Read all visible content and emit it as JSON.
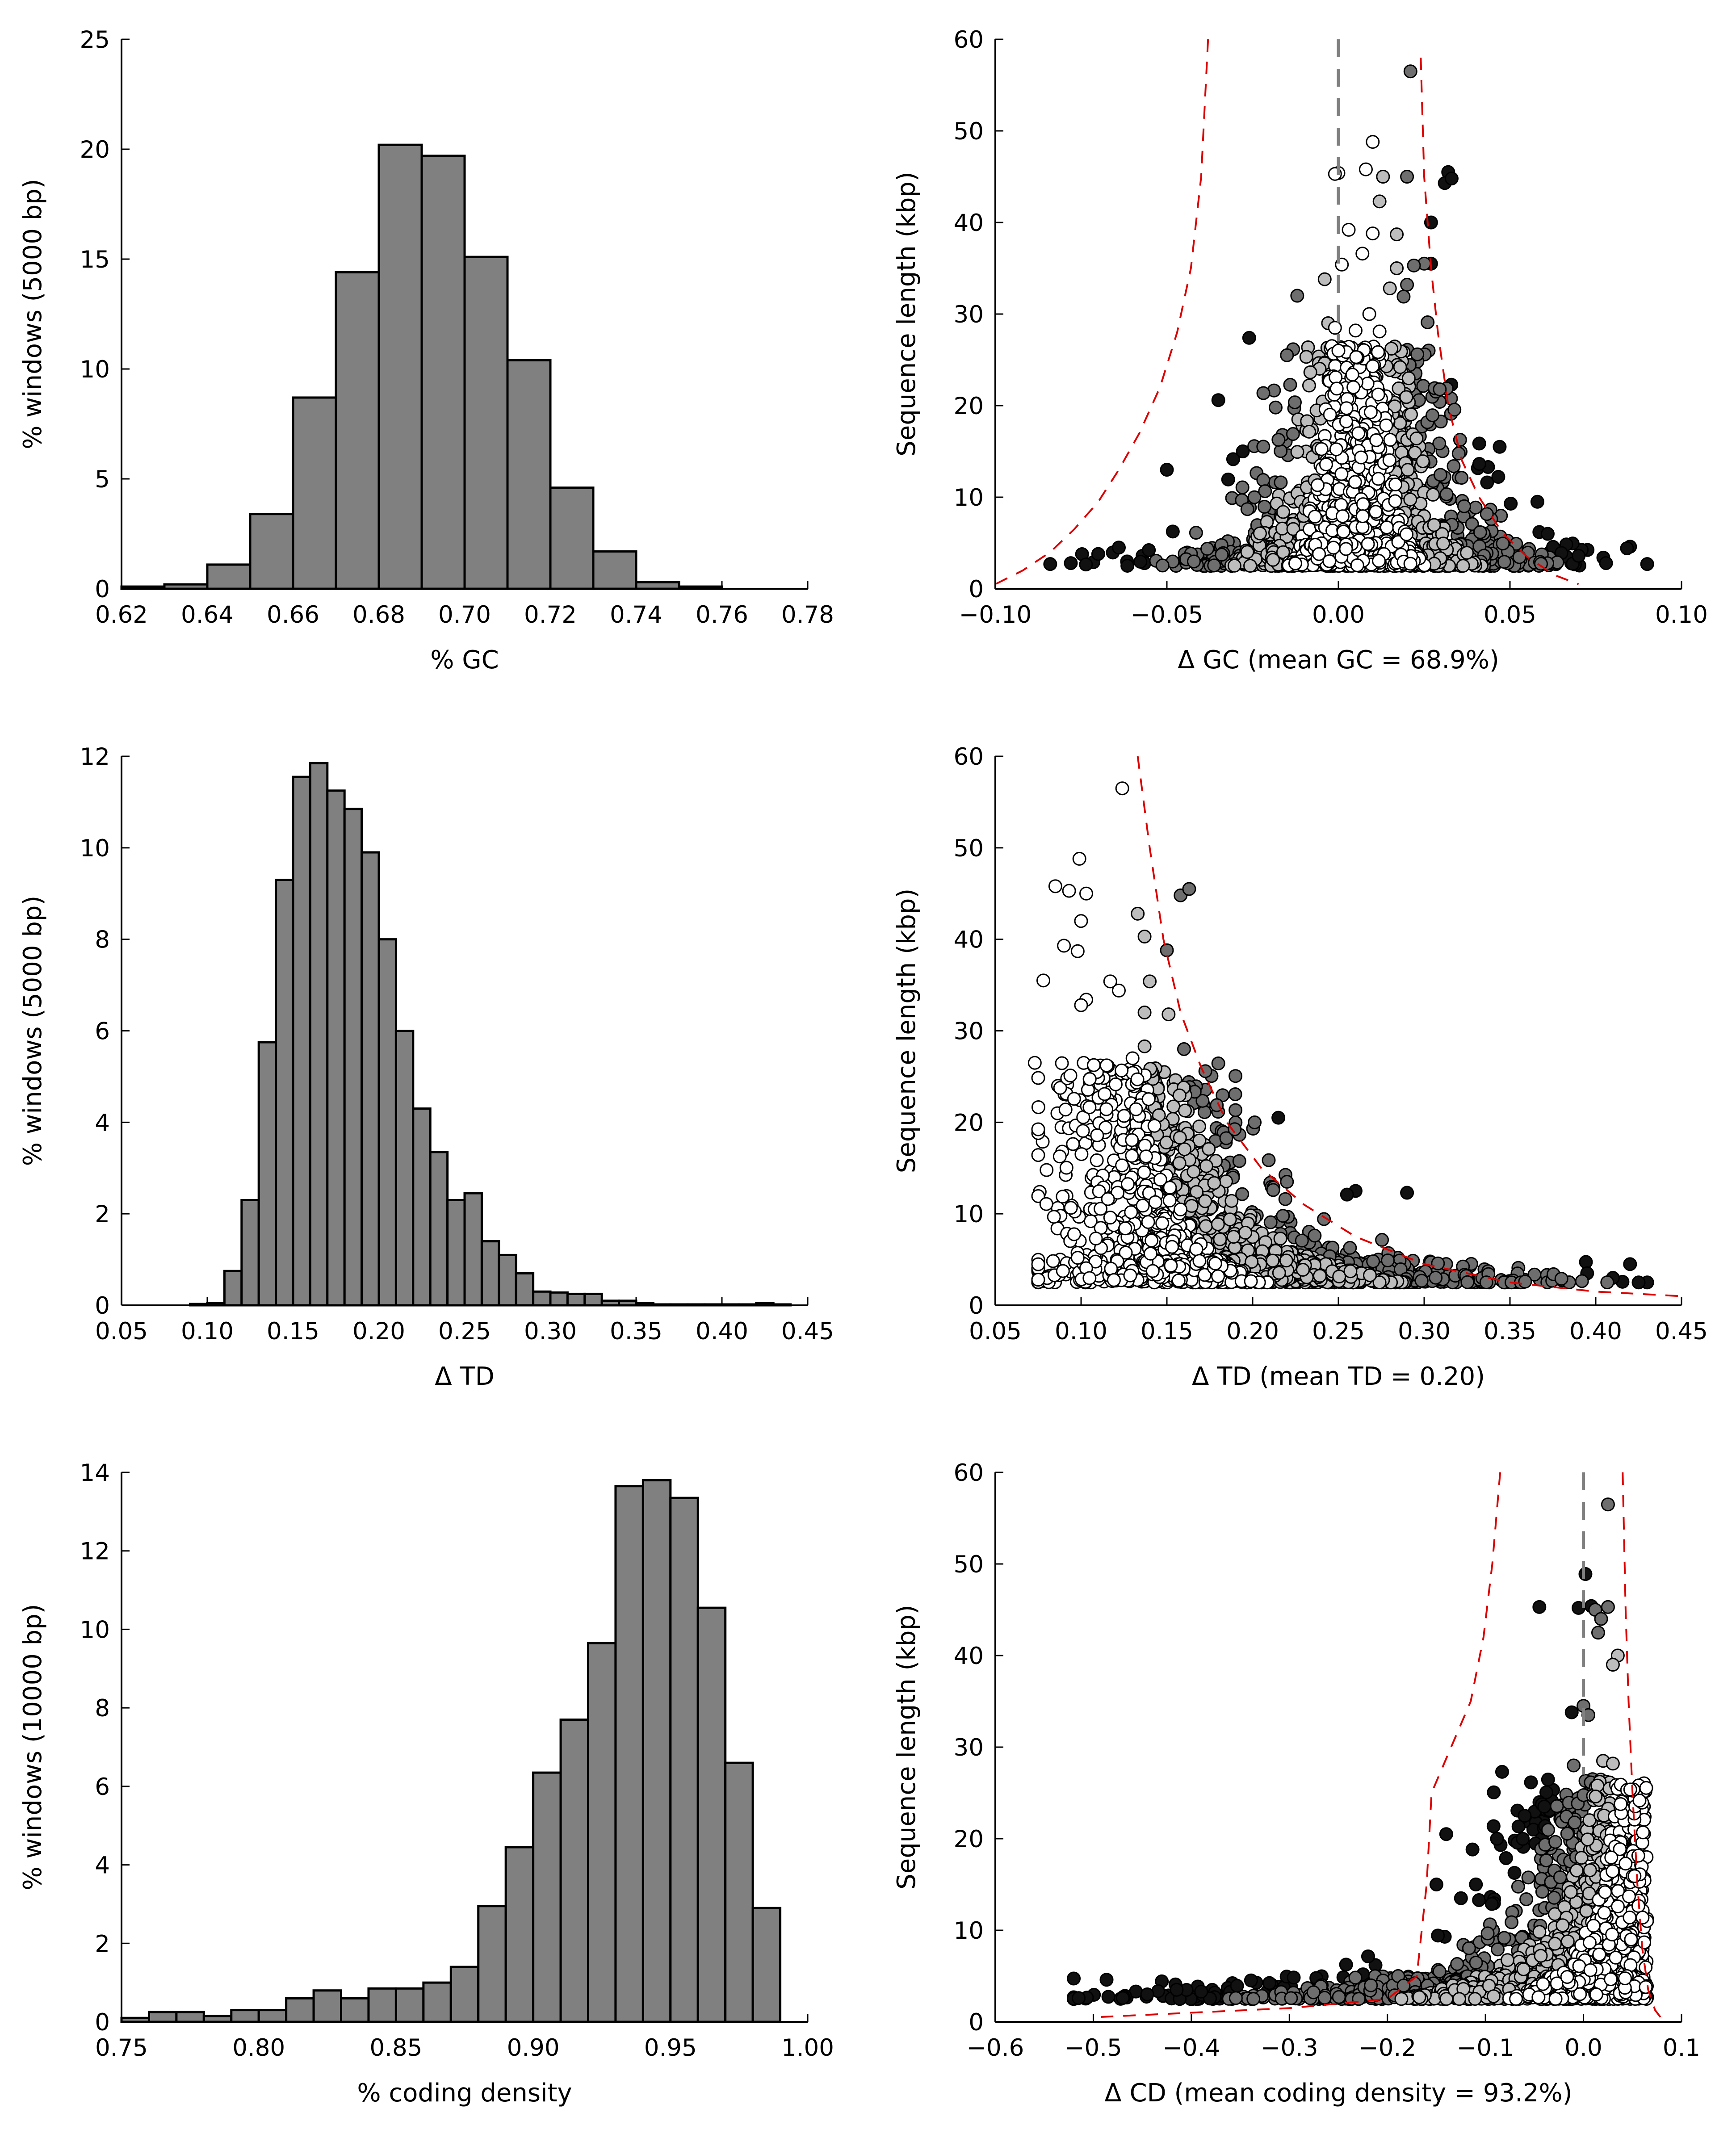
{
  "chart_data": [
    {
      "id": "gc-hist",
      "type": "bar",
      "xlabel": "% GC",
      "ylabel": "% windows (5000 bp)",
      "xlim": [
        0.62,
        0.78
      ],
      "ylim": [
        0,
        25
      ],
      "xticks": [
        0.62,
        0.64,
        0.66,
        0.68,
        0.7,
        0.72,
        0.74,
        0.76,
        0.78
      ],
      "xtick_labels": [
        "0.62",
        "0.64",
        "0.66",
        "0.68",
        "0.70",
        "0.72",
        "0.74",
        "0.76",
        "0.78"
      ],
      "yticks": [
        0,
        5,
        10,
        15,
        20,
        25
      ],
      "ytick_labels": [
        "0",
        "5",
        "10",
        "15",
        "20",
        "25"
      ],
      "bin_edges": [
        0.62,
        0.63,
        0.64,
        0.65,
        0.66,
        0.67,
        0.68,
        0.69,
        0.7,
        0.71,
        0.72,
        0.73,
        0.74,
        0.75,
        0.76
      ],
      "values": [
        0.1,
        0.2,
        1.1,
        3.4,
        8.7,
        14.4,
        20.2,
        19.7,
        15.1,
        10.4,
        4.6,
        1.7,
        0.3,
        0.1
      ],
      "bar_color": "#808080"
    },
    {
      "id": "gc-scatter",
      "type": "scatter",
      "xlabel": "Δ GC (mean GC = 68.9%)",
      "ylabel": "Sequence length (kbp)",
      "xlim": [
        -0.1,
        0.1
      ],
      "ylim": [
        0,
        60
      ],
      "xticks": [
        -0.1,
        -0.05,
        0.0,
        0.05,
        0.1
      ],
      "xtick_labels": [
        "−0.10",
        "−0.05",
        "0.00",
        "0.05",
        "0.10"
      ],
      "yticks": [
        0,
        10,
        20,
        30,
        40,
        50,
        60
      ],
      "ytick_labels": [
        "0",
        "10",
        "20",
        "30",
        "40",
        "50",
        "60"
      ],
      "reference_line_x": 0.0,
      "bound_left": [
        [
          -0.038,
          60
        ],
        [
          -0.04,
          45
        ],
        [
          -0.043,
          35
        ],
        [
          -0.047,
          28
        ],
        [
          -0.052,
          22
        ],
        [
          -0.058,
          17
        ],
        [
          -0.064,
          13
        ],
        [
          -0.07,
          9.5
        ],
        [
          -0.077,
          6.5
        ],
        [
          -0.084,
          4
        ],
        [
          -0.092,
          2
        ],
        [
          -0.1,
          0.5
        ]
      ],
      "bound_right": [
        [
          0.024,
          58
        ],
        [
          0.025,
          45
        ],
        [
          0.027,
          35
        ],
        [
          0.029,
          28
        ],
        [
          0.032,
          20
        ],
        [
          0.036,
          14
        ],
        [
          0.041,
          10
        ],
        [
          0.048,
          6
        ],
        [
          0.055,
          3.5
        ],
        [
          0.063,
          1.5
        ],
        [
          0.07,
          0.5
        ]
      ],
      "colors": {
        "inner": "#ffffff",
        "mid": "#bdbdbd",
        "outer": "#6e6e6e",
        "extreme": "#111111",
        "bound": "#dd0000",
        "reference": "#808080"
      },
      "highlight_points": [
        [
          0.021,
          56.5
        ],
        [
          0.01,
          48.8
        ],
        [
          0.0,
          45.4
        ],
        [
          -0.001,
          45.3
        ],
        [
          0.008,
          45.8
        ],
        [
          0.013,
          45.0
        ],
        [
          0.02,
          45.0
        ],
        [
          0.032,
          45.5
        ],
        [
          0.031,
          44.3
        ],
        [
          0.033,
          44.8
        ],
        [
          0.012,
          42.3
        ],
        [
          0.003,
          39.2
        ],
        [
          0.027,
          40.0
        ],
        [
          0.01,
          38.8
        ],
        [
          0.017,
          38.7
        ],
        [
          0.025,
          35.5
        ],
        [
          0.027,
          35.5
        ],
        [
          0.022,
          35.3
        ],
        [
          0.001,
          35.4
        ],
        [
          0.007,
          36.6
        ],
        [
          0.017,
          35.0
        ],
        [
          0.02,
          33.2
        ],
        [
          -0.004,
          33.8
        ],
        [
          0.015,
          32.8
        ],
        [
          -0.012,
          32.0
        ],
        [
          0.019,
          31.9
        ],
        [
          0.026,
          29.1
        ],
        [
          0.009,
          30.0
        ],
        [
          -0.003,
          29.0
        ],
        [
          -0.001,
          28.5
        ],
        [
          0.005,
          28.2
        ],
        [
          0.012,
          28.1
        ],
        [
          -0.026,
          27.4
        ],
        [
          0.0,
          26.0
        ],
        [
          -0.015,
          25.5
        ],
        [
          0.023,
          25.6
        ],
        [
          0.014,
          24.3
        ],
        [
          0.01,
          24.3
        ],
        [
          -0.035,
          20.6
        ],
        [
          0.047,
          15.5
        ],
        [
          -0.05,
          13.0
        ],
        [
          0.058,
          9.5
        ],
        [
          0.061,
          6.0
        ],
        [
          -0.064,
          4.5
        ],
        [
          -0.07,
          3.8
        ],
        [
          0.065,
          3.9
        ],
        [
          0.07,
          3.6
        ],
        [
          -0.078,
          2.8
        ],
        [
          -0.084,
          2.7
        ],
        [
          0.09,
          2.7
        ],
        [
          0.078,
          2.8
        ]
      ]
    },
    {
      "id": "td-hist",
      "type": "bar",
      "xlabel": "Δ TD",
      "ylabel": "% windows (5000 bp)",
      "xlim": [
        0.05,
        0.45
      ],
      "ylim": [
        0,
        12
      ],
      "xticks": [
        0.05,
        0.1,
        0.15,
        0.2,
        0.25,
        0.3,
        0.35,
        0.4,
        0.45
      ],
      "xtick_labels": [
        "0.05",
        "0.10",
        "0.15",
        "0.20",
        "0.25",
        "0.30",
        "0.35",
        "0.40",
        "0.45"
      ],
      "yticks": [
        0,
        2,
        4,
        6,
        8,
        10,
        12
      ],
      "ytick_labels": [
        "0",
        "2",
        "4",
        "6",
        "8",
        "10",
        "12"
      ],
      "bin_edges": [
        0.09,
        0.1,
        0.11,
        0.12,
        0.13,
        0.14,
        0.15,
        0.16,
        0.17,
        0.18,
        0.19,
        0.2,
        0.21,
        0.22,
        0.23,
        0.24,
        0.25,
        0.26,
        0.27,
        0.28,
        0.29,
        0.3,
        0.31,
        0.32,
        0.33,
        0.34,
        0.35,
        0.36,
        0.37,
        0.38,
        0.39,
        0.4,
        0.41,
        0.42,
        0.43,
        0.44
      ],
      "values": [
        0.03,
        0.05,
        0.75,
        2.3,
        5.75,
        9.3,
        11.55,
        11.85,
        11.25,
        10.85,
        9.9,
        8.0,
        6.0,
        4.3,
        3.35,
        2.3,
        2.45,
        1.4,
        1.1,
        0.7,
        0.3,
        0.28,
        0.25,
        0.25,
        0.1,
        0.1,
        0.05,
        0.02,
        0.02,
        0.02,
        0.02,
        0.02,
        0.02,
        0.05,
        0.02
      ],
      "bar_color": "#808080"
    },
    {
      "id": "td-scatter",
      "type": "scatter",
      "xlabel": "Δ TD (mean TD = 0.20)",
      "ylabel": "Sequence length (kbp)",
      "xlim": [
        0.05,
        0.45
      ],
      "ylim": [
        0,
        60
      ],
      "xticks": [
        0.05,
        0.1,
        0.15,
        0.2,
        0.25,
        0.3,
        0.35,
        0.4,
        0.45
      ],
      "xtick_labels": [
        "0.05",
        "0.10",
        "0.15",
        "0.20",
        "0.25",
        "0.30",
        "0.35",
        "0.40",
        "0.45"
      ],
      "yticks": [
        0,
        10,
        20,
        30,
        40,
        50,
        60
      ],
      "ytick_labels": [
        "0",
        "10",
        "20",
        "30",
        "40",
        "50",
        "60"
      ],
      "bound_right": [
        [
          0.133,
          60
        ],
        [
          0.14,
          50
        ],
        [
          0.148,
          40
        ],
        [
          0.158,
          32
        ],
        [
          0.17,
          26
        ],
        [
          0.185,
          20
        ],
        [
          0.205,
          15
        ],
        [
          0.23,
          11
        ],
        [
          0.26,
          7.5
        ],
        [
          0.3,
          4.5
        ],
        [
          0.35,
          2.5
        ],
        [
          0.4,
          1.5
        ],
        [
          0.45,
          1.0
        ]
      ],
      "colors": {
        "inner": "#ffffff",
        "mid": "#bdbdbd",
        "outer": "#6e6e6e",
        "extreme": "#111111",
        "bound": "#dd0000"
      },
      "highlight_points": [
        [
          0.124,
          56.5
        ],
        [
          0.099,
          48.8
        ],
        [
          0.085,
          45.8
        ],
        [
          0.093,
          45.3
        ],
        [
          0.103,
          45.0
        ],
        [
          0.158,
          44.8
        ],
        [
          0.163,
          45.5
        ],
        [
          0.1,
          42.0
        ],
        [
          0.133,
          42.8
        ],
        [
          0.137,
          40.3
        ],
        [
          0.09,
          39.3
        ],
        [
          0.15,
          38.8
        ],
        [
          0.098,
          38.7
        ],
        [
          0.117,
          35.4
        ],
        [
          0.078,
          35.5
        ],
        [
          0.122,
          34.4
        ],
        [
          0.14,
          35.4
        ],
        [
          0.103,
          33.4
        ],
        [
          0.1,
          32.8
        ],
        [
          0.137,
          32.0
        ],
        [
          0.151,
          31.8
        ],
        [
          0.137,
          28.3
        ],
        [
          0.16,
          28.0
        ],
        [
          0.13,
          27.0
        ],
        [
          0.073,
          26.5
        ],
        [
          0.215,
          20.5
        ],
        [
          0.29,
          12.3
        ],
        [
          0.26,
          12.5
        ],
        [
          0.255,
          12.1
        ],
        [
          0.212,
          12.6
        ],
        [
          0.22,
          13.5
        ],
        [
          0.42,
          4.5
        ],
        [
          0.41,
          3.0
        ],
        [
          0.425,
          2.5
        ],
        [
          0.395,
          3.5
        ],
        [
          0.38,
          2.9
        ]
      ]
    },
    {
      "id": "cd-hist",
      "type": "bar",
      "xlabel": "% coding density",
      "ylabel": "% windows (10000 bp)",
      "xlim": [
        0.75,
        1.0
      ],
      "ylim": [
        0,
        14
      ],
      "xticks": [
        0.75,
        0.8,
        0.85,
        0.9,
        0.95,
        1.0
      ],
      "xtick_labels": [
        "0.75",
        "0.80",
        "0.85",
        "0.90",
        "0.95",
        "1.00"
      ],
      "yticks": [
        0,
        2,
        4,
        6,
        8,
        10,
        12,
        14
      ],
      "ytick_labels": [
        "0",
        "2",
        "4",
        "6",
        "8",
        "10",
        "12",
        "14"
      ],
      "bin_edges": [
        0.75,
        0.76,
        0.77,
        0.78,
        0.79,
        0.8,
        0.81,
        0.82,
        0.83,
        0.84,
        0.85,
        0.86,
        0.87,
        0.88,
        0.89,
        0.9,
        0.91,
        0.92,
        0.93,
        0.94,
        0.95,
        0.96,
        0.97,
        0.98,
        0.99
      ],
      "values": [
        0.1,
        0.25,
        0.25,
        0.15,
        0.3,
        0.3,
        0.6,
        0.8,
        0.6,
        0.85,
        0.85,
        1.0,
        1.4,
        2.95,
        4.45,
        6.35,
        7.7,
        9.65,
        13.65,
        13.8,
        13.35,
        10.55,
        6.6,
        2.9
      ],
      "bar_color": "#808080"
    },
    {
      "id": "cd-scatter",
      "type": "scatter",
      "xlabel": "Δ CD (mean coding density = 93.2%)",
      "ylabel": "Sequence length (kbp)",
      "xlim": [
        -0.6,
        0.1
      ],
      "ylim": [
        0,
        60
      ],
      "xticks": [
        -0.6,
        -0.5,
        -0.4,
        -0.3,
        -0.2,
        -0.1,
        0.0,
        0.1
      ],
      "xtick_labels": [
        "−0.6",
        "−0.5",
        "−0.4",
        "−0.3",
        "−0.2",
        "−0.1",
        "0.0",
        "0.1"
      ],
      "yticks": [
        0,
        10,
        20,
        30,
        40,
        50,
        60
      ],
      "ytick_labels": [
        "0",
        "10",
        "20",
        "30",
        "40",
        "50",
        "60"
      ],
      "reference_line_x": 0.0,
      "bound_left": [
        [
          -0.085,
          60
        ],
        [
          -0.093,
          50
        ],
        [
          -0.102,
          42
        ],
        [
          -0.115,
          35
        ],
        [
          -0.135,
          30
        ],
        [
          -0.155,
          25
        ],
        [
          -0.16,
          15
        ],
        [
          -0.17,
          5
        ],
        [
          -0.2,
          2.5
        ],
        [
          -0.3,
          1.5
        ],
        [
          -0.5,
          0.5
        ]
      ],
      "bound_right": [
        [
          0.04,
          60
        ],
        [
          0.043,
          45
        ],
        [
          0.046,
          35
        ],
        [
          0.05,
          25
        ],
        [
          0.055,
          15
        ],
        [
          0.06,
          8
        ],
        [
          0.066,
          3.5
        ],
        [
          0.073,
          1.3
        ],
        [
          0.08,
          0.3
        ]
      ],
      "colors": {
        "inner": "#ffffff",
        "mid": "#bdbdbd",
        "outer": "#6e6e6e",
        "extreme": "#111111",
        "bound": "#dd0000",
        "reference": "#808080"
      },
      "highlight_points": [
        [
          0.025,
          56.5
        ],
        [
          0.002,
          48.9
        ],
        [
          -0.045,
          45.3
        ],
        [
          -0.005,
          45.2
        ],
        [
          0.008,
          45.4
        ],
        [
          0.025,
          45.3
        ],
        [
          0.012,
          45.0
        ],
        [
          0.018,
          44.0
        ],
        [
          0.015,
          42.5
        ],
        [
          0.035,
          40.0
        ],
        [
          0.03,
          39.0
        ],
        [
          -0.012,
          33.8
        ],
        [
          0.0,
          34.5
        ],
        [
          0.005,
          33.5
        ],
        [
          -0.083,
          27.3
        ],
        [
          -0.01,
          28.0
        ],
        [
          0.02,
          28.5
        ],
        [
          0.03,
          28.2
        ],
        [
          -0.14,
          20.5
        ],
        [
          -0.04,
          23.5
        ],
        [
          -0.06,
          22.5
        ],
        [
          -0.15,
          15.0
        ],
        [
          -0.125,
          13.5
        ],
        [
          -0.515,
          2.6
        ],
        [
          -0.47,
          2.6
        ],
        [
          -0.445,
          3.0
        ],
        [
          -0.415,
          3.5
        ],
        [
          -0.39,
          3.3
        ]
      ]
    }
  ]
}
